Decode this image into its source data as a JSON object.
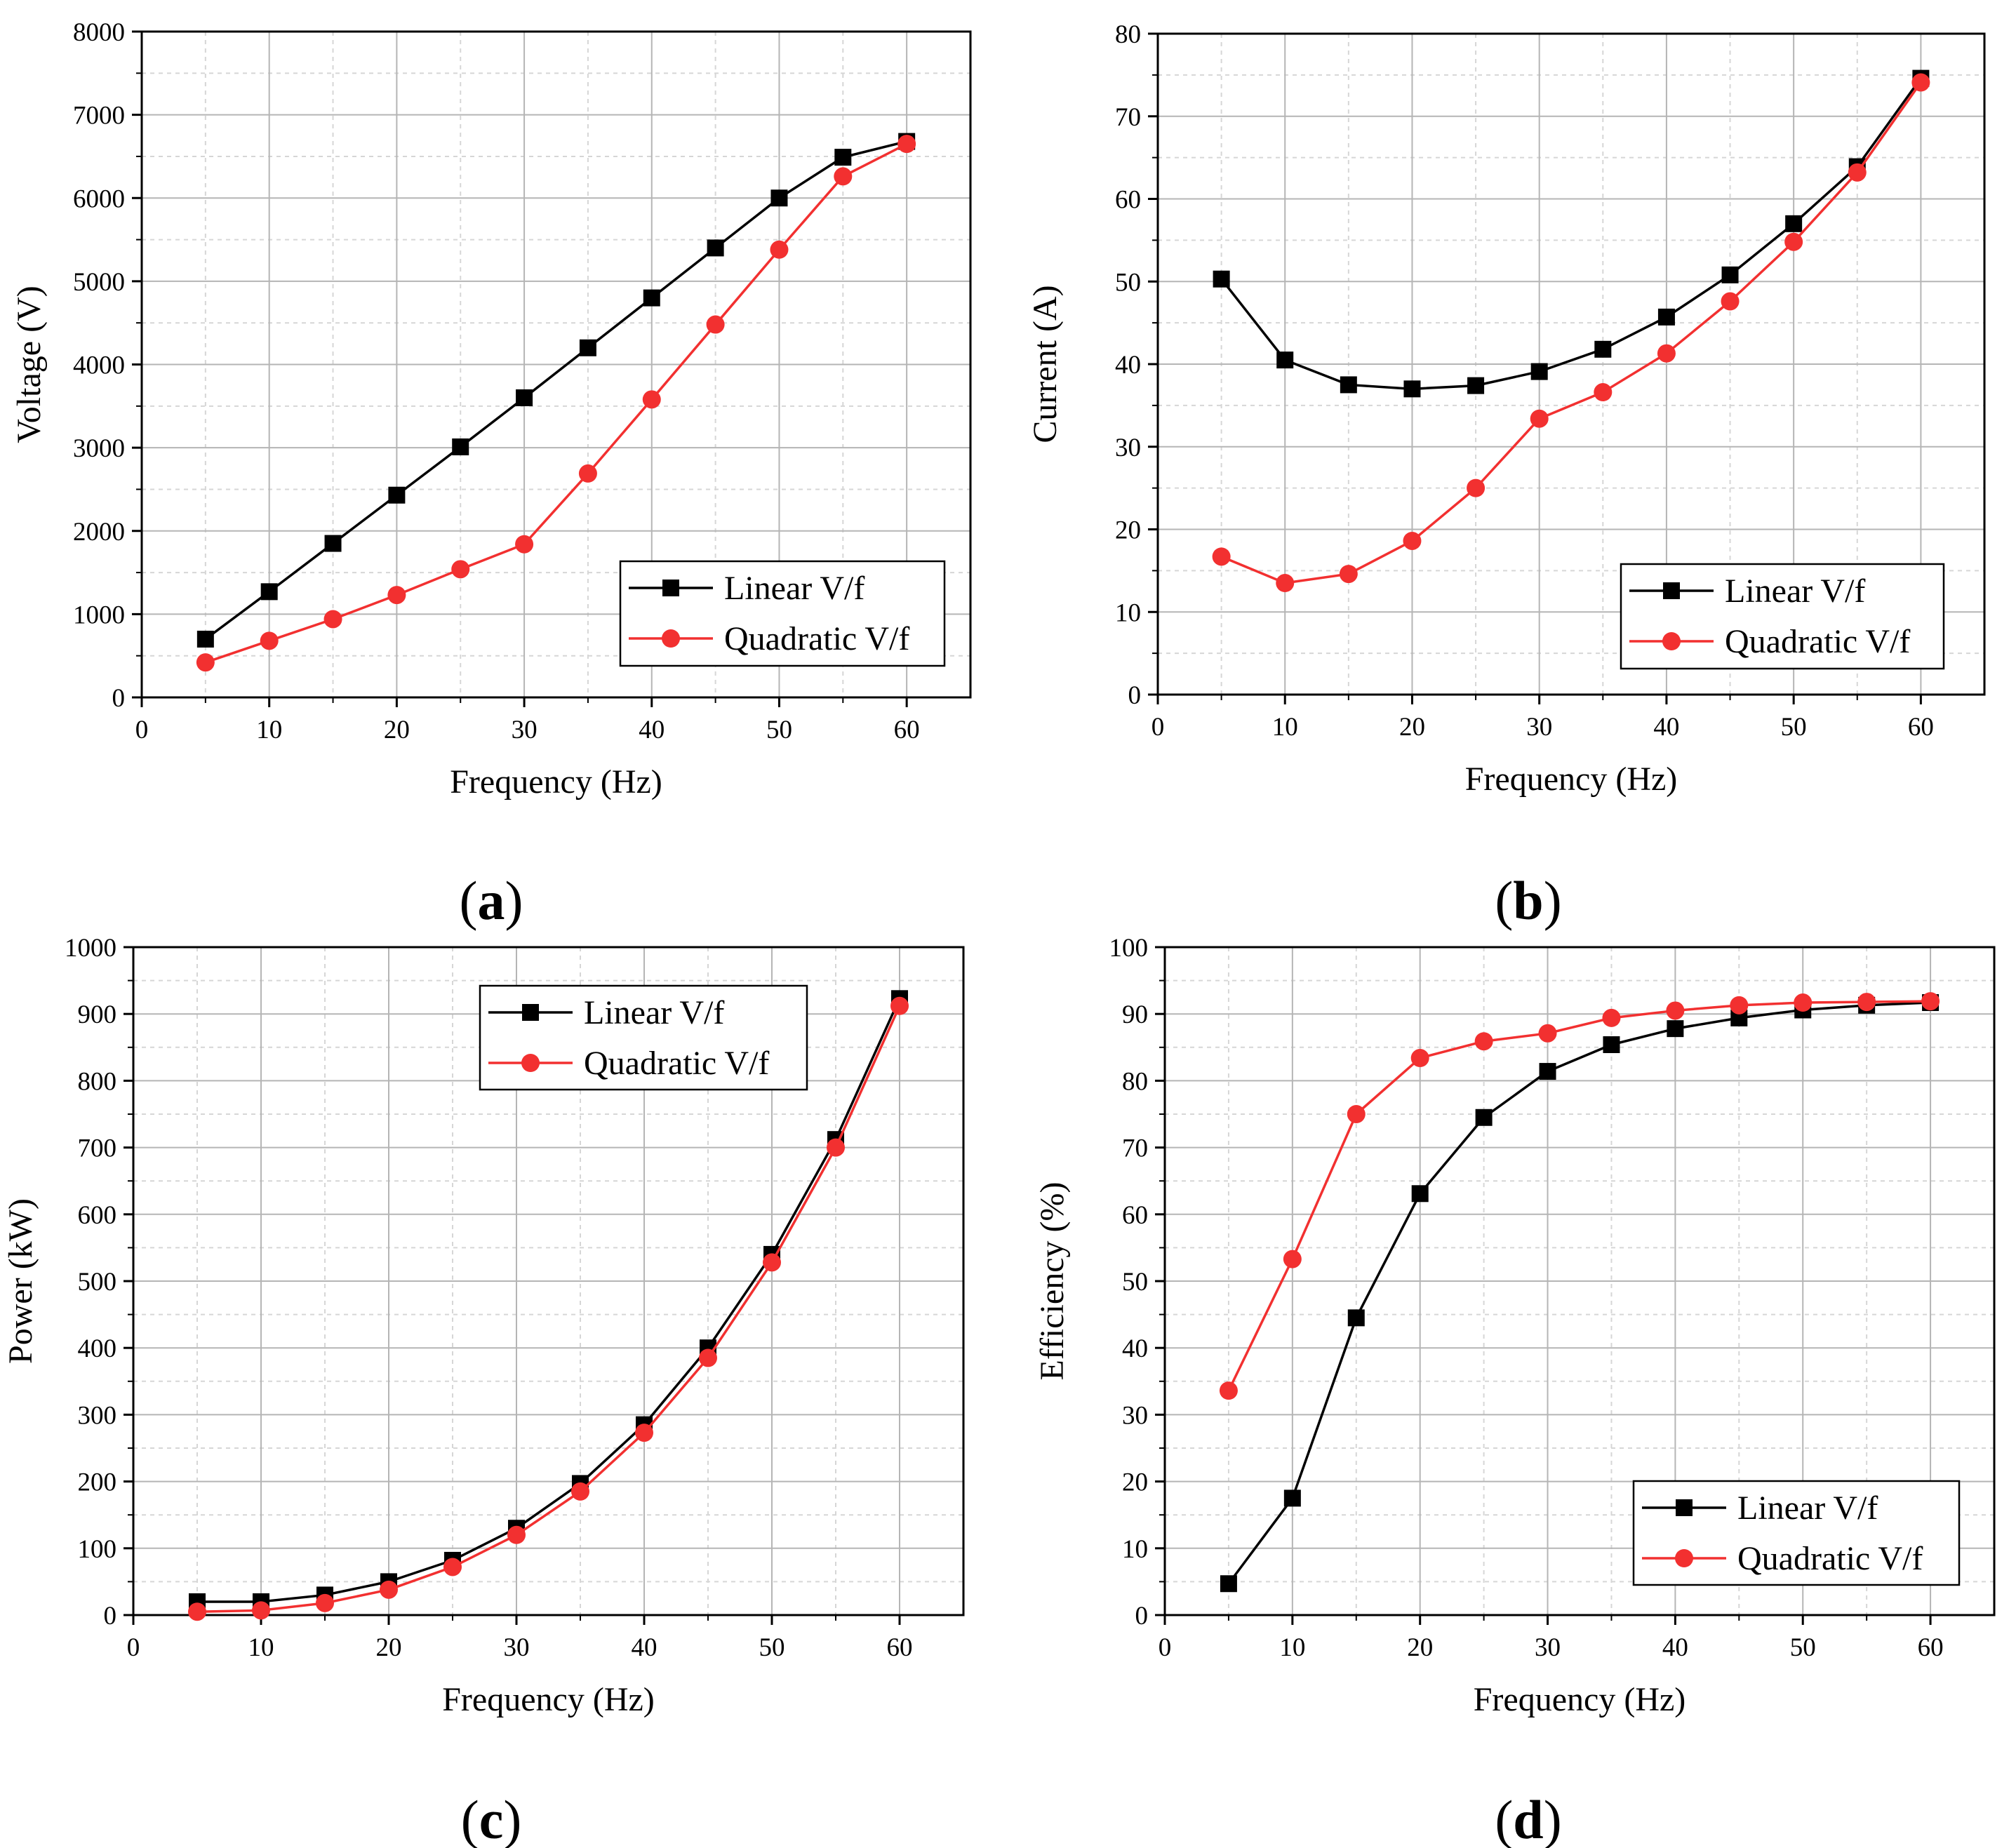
{
  "chart_data": [
    {
      "id": "a",
      "type": "line",
      "panel_label": "(a)",
      "panel_letter": "a",
      "xlabel": "Frequency (Hz)",
      "ylabel": "Voltage (V)",
      "xlim": [
        0,
        65
      ],
      "ylim": [
        0,
        8000
      ],
      "xticks": [
        0,
        10,
        20,
        30,
        40,
        50,
        60
      ],
      "yticks": [
        0,
        1000,
        2000,
        3000,
        4000,
        5000,
        6000,
        7000,
        8000
      ],
      "grid": true,
      "legend_position": "bottom-right",
      "x": [
        5,
        10,
        15,
        20,
        25,
        30,
        35,
        40,
        45,
        50,
        55,
        60
      ],
      "series": [
        {
          "name": "Linear V/f",
          "color": "#000000",
          "marker": "square",
          "values": [
            700,
            1270,
            1850,
            2430,
            3010,
            3600,
            4200,
            4800,
            5400,
            6000,
            6490,
            6680
          ]
        },
        {
          "name": "Quadratic V/f",
          "color": "#f23030",
          "marker": "circle",
          "values": [
            420,
            680,
            940,
            1230,
            1540,
            1840,
            2690,
            3580,
            4480,
            5380,
            6260,
            6650
          ]
        }
      ]
    },
    {
      "id": "b",
      "type": "line",
      "panel_label": "(b)",
      "panel_letter": "b",
      "xlabel": "Frequency (Hz)",
      "ylabel": "Current (A)",
      "xlim": [
        0,
        65
      ],
      "ylim": [
        0,
        80
      ],
      "xticks": [
        0,
        10,
        20,
        30,
        40,
        50,
        60
      ],
      "yticks": [
        0,
        10,
        20,
        30,
        40,
        50,
        60,
        70,
        80
      ],
      "grid": true,
      "legend_position": "bottom-right",
      "x": [
        5,
        10,
        15,
        20,
        25,
        30,
        35,
        40,
        45,
        50,
        55,
        60
      ],
      "series": [
        {
          "name": "Linear V/f",
          "color": "#000000",
          "marker": "square",
          "values": [
            50.3,
            40.5,
            37.5,
            37.0,
            37.4,
            39.1,
            41.8,
            45.7,
            50.8,
            57.0,
            63.9,
            74.6
          ]
        },
        {
          "name": "Quadratic V/f",
          "color": "#f23030",
          "marker": "circle",
          "values": [
            16.7,
            13.5,
            14.6,
            18.6,
            25.0,
            33.4,
            36.6,
            41.3,
            47.6,
            54.8,
            63.2,
            74.1
          ]
        }
      ]
    },
    {
      "id": "c",
      "type": "line",
      "panel_label": "(c)",
      "panel_letter": "c",
      "xlabel": "Frequency (Hz)",
      "ylabel": "Power (kW)",
      "xlim": [
        0,
        65
      ],
      "ylim": [
        0,
        1000
      ],
      "xticks": [
        0,
        10,
        20,
        30,
        40,
        50,
        60
      ],
      "yticks": [
        0,
        100,
        200,
        300,
        400,
        500,
        600,
        700,
        800,
        900,
        1000
      ],
      "grid": true,
      "legend_position": "top-right",
      "x": [
        5,
        10,
        15,
        20,
        25,
        30,
        35,
        40,
        45,
        50,
        55,
        60
      ],
      "series": [
        {
          "name": "Linear V/f",
          "color": "#000000",
          "marker": "square",
          "values": [
            20,
            20,
            30,
            50,
            82,
            130,
            197,
            285,
            400,
            540,
            712,
            923
          ]
        },
        {
          "name": "Quadratic V/f",
          "color": "#f23030",
          "marker": "circle",
          "values": [
            5,
            7,
            18,
            38,
            72,
            120,
            185,
            273,
            385,
            528,
            700,
            912
          ]
        }
      ]
    },
    {
      "id": "d",
      "type": "line",
      "panel_label": "(d)",
      "panel_letter": "d",
      "xlabel": "Frequency (Hz)",
      "ylabel": "Efficiency (%)",
      "xlim": [
        0,
        65
      ],
      "ylim": [
        0,
        100
      ],
      "xticks": [
        0,
        10,
        20,
        30,
        40,
        50,
        60
      ],
      "yticks": [
        0,
        10,
        20,
        30,
        40,
        50,
        60,
        70,
        80,
        90,
        100
      ],
      "grid": true,
      "legend_position": "bottom-right",
      "x": [
        5,
        10,
        15,
        20,
        25,
        30,
        35,
        40,
        45,
        50,
        55,
        60
      ],
      "series": [
        {
          "name": "Linear V/f",
          "color": "#000000",
          "marker": "square",
          "values": [
            4.7,
            17.5,
            44.5,
            63.1,
            74.5,
            81.4,
            85.4,
            87.8,
            89.4,
            90.6,
            91.3,
            91.7
          ]
        },
        {
          "name": "Quadratic V/f",
          "color": "#f23030",
          "marker": "circle",
          "values": [
            33.6,
            53.3,
            75.0,
            83.4,
            85.9,
            87.1,
            89.4,
            90.5,
            91.3,
            91.7,
            91.8,
            91.9
          ]
        }
      ]
    }
  ]
}
